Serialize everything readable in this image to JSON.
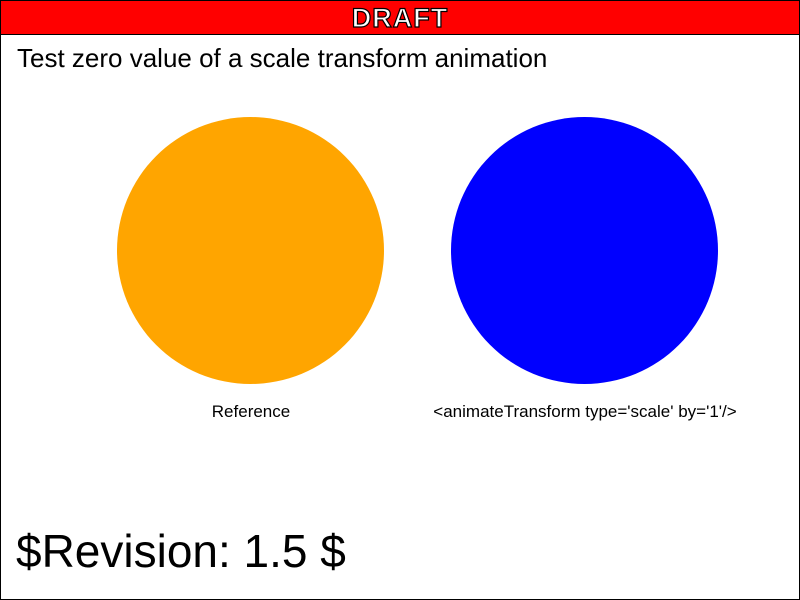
{
  "banner": {
    "label": "DRAFT"
  },
  "title": "Test zero value of a scale transform animation",
  "circles": [
    {
      "caption": "Reference",
      "color": "#ffa500"
    },
    {
      "caption": "<animateTransform type='scale' by='1'/>",
      "color": "#0000ff"
    }
  ],
  "revision": "$Revision: 1.5 $",
  "colors": {
    "banner": "#ff0000",
    "banner_text": "#ffffff"
  }
}
